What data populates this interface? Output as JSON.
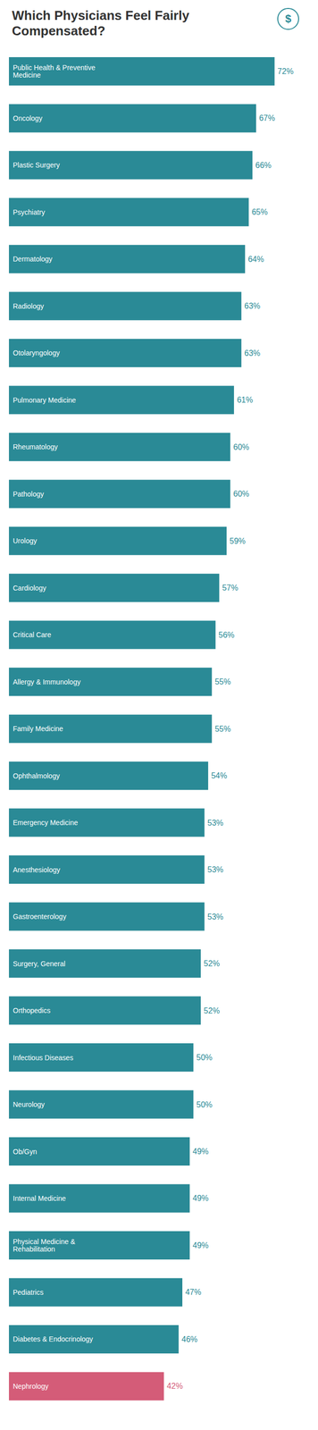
{
  "chart_data": {
    "type": "bar",
    "orientation": "horizontal",
    "title": "Which Physicians Feel Fairly\nCompensated?",
    "annotations": [
      "$"
    ],
    "categories": [
      "Public Health & Preventive\nMedicine",
      "Oncology",
      "Plastic Surgery",
      "Psychiatry",
      "Dermatology",
      "Radiology",
      "Otolaryngology",
      "Pulmonary Medicine",
      "Rheumatology",
      "Pathology",
      "Urology",
      "Cardiology",
      "Critical Care",
      "Allergy & Immunology",
      "Family Medicine",
      "Ophthalmology",
      "Emergency Medicine",
      "Anesthesiology",
      "Gastroenterology",
      "Surgery, General",
      "Orthopedics",
      "Infectious Diseases",
      "Neurology",
      "Ob/Gyn",
      "Internal Medicine",
      "Physical Medicine &\nRehabilitation",
      "Pediatrics",
      "Diabetes & Endocrinology",
      "Nephrology"
    ],
    "values": [
      72,
      67,
      66,
      65,
      64,
      63,
      63,
      61,
      60,
      60,
      59,
      57,
      56,
      55,
      55,
      54,
      53,
      53,
      53,
      52,
      52,
      50,
      50,
      49,
      49,
      49,
      47,
      46,
      42
    ],
    "value_labels": [
      "72%",
      "67%",
      "66%",
      "65%",
      "64%",
      "63%",
      "63%",
      "61%",
      "60%",
      "60%",
      "59%",
      "57%",
      "56%",
      "55%",
      "55%",
      "54%",
      "53%",
      "53%",
      "53%",
      "52%",
      "52%",
      "50%",
      "50%",
      "49%",
      "49%",
      "49%",
      "47%",
      "46%",
      "42%"
    ],
    "colors": [
      "#2a8a96",
      "#2a8a96",
      "#2a8a96",
      "#2a8a96",
      "#2a8a96",
      "#2a8a96",
      "#2a8a96",
      "#2a8a96",
      "#2a8a96",
      "#2a8a96",
      "#2a8a96",
      "#2a8a96",
      "#2a8a96",
      "#2a8a96",
      "#2a8a96",
      "#2a8a96",
      "#2a8a96",
      "#2a8a96",
      "#2a8a96",
      "#2a8a96",
      "#2a8a96",
      "#2a8a96",
      "#2a8a96",
      "#2a8a96",
      "#2a8a96",
      "#2a8a96",
      "#2a8a96",
      "#2a8a96",
      "#d45c78"
    ],
    "xlim": [
      0,
      80
    ],
    "data_labels": true,
    "tick_labels": false
  }
}
